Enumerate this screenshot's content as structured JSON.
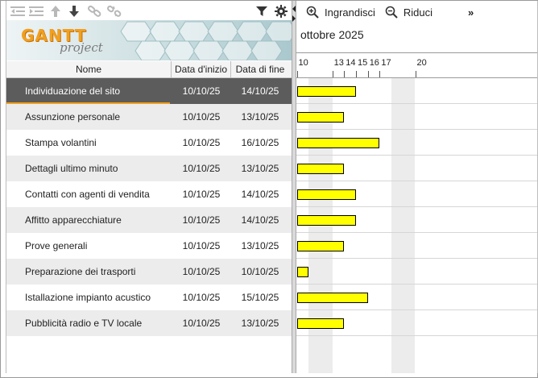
{
  "toolbar": {
    "icons": [
      "outdent-icon",
      "indent-icon",
      "move-up-icon",
      "move-down-icon",
      "link-icon",
      "unlink-icon",
      "filter-icon",
      "gear-icon"
    ]
  },
  "logo": {
    "word1": "GANTT",
    "word2": "project"
  },
  "columns": {
    "name": "Nome",
    "start": "Data d'inizio",
    "end": "Data di fine"
  },
  "tasks": [
    {
      "name": "Individuazione del sito",
      "start": "10/10/25",
      "end": "14/10/25",
      "start_day": 10,
      "end_day": 14,
      "selected": true
    },
    {
      "name": "Assunzione personale",
      "start": "10/10/25",
      "end": "13/10/25",
      "start_day": 10,
      "end_day": 13
    },
    {
      "name": "Stampa volantini",
      "start": "10/10/25",
      "end": "16/10/25",
      "start_day": 10,
      "end_day": 16
    },
    {
      "name": "Dettagli ultimo minuto",
      "start": "10/10/25",
      "end": "13/10/25",
      "start_day": 10,
      "end_day": 13
    },
    {
      "name": "Contatti con agenti di vendita",
      "start": "10/10/25",
      "end": "14/10/25",
      "start_day": 10,
      "end_day": 14
    },
    {
      "name": "Affitto apparecchiature",
      "start": "10/10/25",
      "end": "14/10/25",
      "start_day": 10,
      "end_day": 14
    },
    {
      "name": "Prove generali",
      "start": "10/10/25",
      "end": "13/10/25",
      "start_day": 10,
      "end_day": 13
    },
    {
      "name": "Preparazione dei trasporti",
      "start": "10/10/25",
      "end": "10/10/25",
      "start_day": 10,
      "end_day": 10
    },
    {
      "name": "Istallazione impianto acustico",
      "start": "10/10/25",
      "end": "15/10/25",
      "start_day": 10,
      "end_day": 15
    },
    {
      "name": "Pubblicità radio e TV locale",
      "start": "10/10/25",
      "end": "13/10/25",
      "start_day": 10,
      "end_day": 13
    }
  ],
  "zoom": {
    "zoom_in": "Ingrandisci",
    "zoom_out": "Riduci",
    "more": "»"
  },
  "timeline": {
    "month": "ottobre 2025",
    "day_labels": [
      "10",
      "13",
      "14",
      "15",
      "16",
      "17",
      "20"
    ],
    "weekend_days": [
      11,
      12,
      18,
      19
    ],
    "first_day": 10
  },
  "colors": {
    "bar": "#ffff00",
    "selected_row": "#5c5c5c",
    "accent": "#f0a020"
  }
}
